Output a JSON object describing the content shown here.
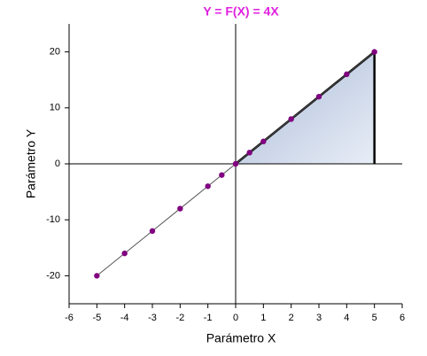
{
  "chart_data": {
    "type": "line",
    "title": "Y = F(X) = 4X",
    "title_color": "#e020e0",
    "x_label": "Parámetro X",
    "y_label": "Parámetro Y",
    "x": [
      -5,
      -4,
      -3,
      -2,
      -1,
      -0.5,
      0,
      0.5,
      1,
      2,
      3,
      4,
      5
    ],
    "values": [
      -20,
      -16,
      -12,
      -8,
      -4,
      -2,
      0,
      2,
      4,
      8,
      12,
      16,
      20
    ],
    "color": "#555555",
    "marker_color": "#800080",
    "fill_range": [
      0,
      5
    ],
    "fill_colors": [
      "#a9b8d6",
      "#e8eef7"
    ],
    "xlim": [
      -6,
      6
    ],
    "xticks": [
      -6,
      -5,
      -4,
      -3,
      -2,
      -1,
      0,
      1,
      2,
      3,
      4,
      5,
      6
    ],
    "ylim": [
      -25,
      25
    ],
    "yticks": [
      -20,
      -10,
      0,
      10,
      20
    ]
  }
}
